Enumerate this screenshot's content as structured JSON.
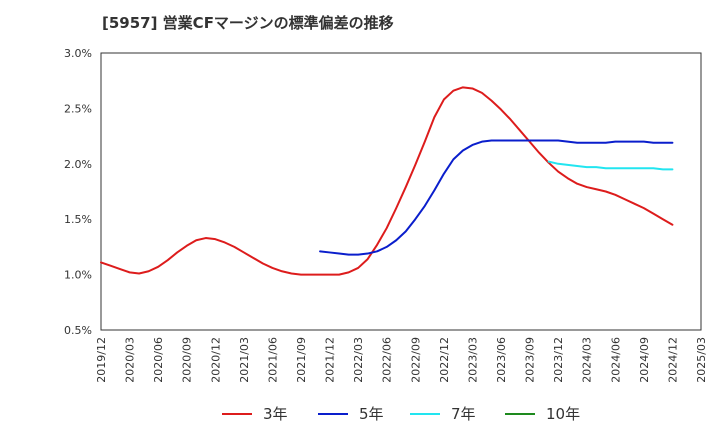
{
  "chart_data": {
    "type": "line",
    "title": "[5957]  営業CFマージンの標準偏差の推移",
    "xlabel": "",
    "ylabel": "",
    "ylim": [
      0.5,
      3.0
    ],
    "xlim": [
      "2019/12",
      "2025/03"
    ],
    "grid": true,
    "legend_position": "bottom",
    "y_ticks": [
      "0.5%",
      "1.0%",
      "1.5%",
      "2.0%",
      "2.5%",
      "3.0%"
    ],
    "x_ticks": [
      "2019/12",
      "2020/03",
      "2020/06",
      "2020/09",
      "2020/12",
      "2021/03",
      "2021/06",
      "2021/09",
      "2021/12",
      "2022/03",
      "2022/06",
      "2022/09",
      "2022/12",
      "2023/03",
      "2023/06",
      "2023/09",
      "2023/12",
      "2024/03",
      "2024/06",
      "2024/09",
      "2024/12",
      "2025/03"
    ],
    "series": [
      {
        "name": "3年",
        "color": "#dd1c1c",
        "x": [
          "2019/12",
          "2020/01",
          "2020/02",
          "2020/03",
          "2020/04",
          "2020/05",
          "2020/06",
          "2020/07",
          "2020/08",
          "2020/09",
          "2020/10",
          "2020/11",
          "2020/12",
          "2021/01",
          "2021/02",
          "2021/03",
          "2021/04",
          "2021/05",
          "2021/06",
          "2021/07",
          "2021/08",
          "2021/09",
          "2021/10",
          "2021/11",
          "2021/12",
          "2022/01",
          "2022/02",
          "2022/03",
          "2022/04",
          "2022/05",
          "2022/06",
          "2022/07",
          "2022/08",
          "2022/09",
          "2022/10",
          "2022/11",
          "2022/12",
          "2023/01",
          "2023/02",
          "2023/03",
          "2023/04",
          "2023/05",
          "2023/06",
          "2023/07",
          "2023/08",
          "2023/09",
          "2023/10",
          "2023/11",
          "2023/12",
          "2024/01",
          "2024/02",
          "2024/03",
          "2024/04",
          "2024/05",
          "2024/06",
          "2024/07",
          "2024/08",
          "2024/09",
          "2024/10",
          "2024/11",
          "2024/12"
        ],
        "values": [
          1.11,
          1.08,
          1.05,
          1.02,
          1.01,
          1.03,
          1.07,
          1.13,
          1.2,
          1.26,
          1.31,
          1.33,
          1.32,
          1.29,
          1.25,
          1.2,
          1.15,
          1.1,
          1.06,
          1.03,
          1.01,
          1.0,
          1.0,
          1.0,
          1.0,
          1.0,
          1.02,
          1.06,
          1.14,
          1.27,
          1.42,
          1.6,
          1.79,
          1.99,
          2.2,
          2.42,
          2.58,
          2.66,
          2.69,
          2.68,
          2.64,
          2.57,
          2.49,
          2.4,
          2.3,
          2.2,
          2.1,
          2.01,
          1.93,
          1.87,
          1.82,
          1.79,
          1.77,
          1.75,
          1.72,
          1.68,
          1.64,
          1.6,
          1.55,
          1.5,
          1.45
        ]
      },
      {
        "name": "5年",
        "color": "#0a1ecc",
        "x": [
          "2021/11",
          "2021/12",
          "2022/01",
          "2022/02",
          "2022/03",
          "2022/04",
          "2022/05",
          "2022/06",
          "2022/07",
          "2022/08",
          "2022/09",
          "2022/10",
          "2022/11",
          "2022/12",
          "2023/01",
          "2023/02",
          "2023/03",
          "2023/04",
          "2023/05",
          "2023/06",
          "2023/07",
          "2023/08",
          "2023/09",
          "2023/10",
          "2023/11",
          "2023/12",
          "2024/01",
          "2024/02",
          "2024/03",
          "2024/04",
          "2024/05",
          "2024/06",
          "2024/07",
          "2024/08",
          "2024/09",
          "2024/10",
          "2024/11",
          "2024/12"
        ],
        "values": [
          1.21,
          1.2,
          1.19,
          1.18,
          1.18,
          1.19,
          1.21,
          1.25,
          1.31,
          1.39,
          1.5,
          1.62,
          1.76,
          1.91,
          2.04,
          2.12,
          2.17,
          2.2,
          2.21,
          2.21,
          2.21,
          2.21,
          2.21,
          2.21,
          2.21,
          2.21,
          2.2,
          2.19,
          2.19,
          2.19,
          2.19,
          2.2,
          2.2,
          2.2,
          2.2,
          2.19,
          2.19,
          2.19
        ]
      },
      {
        "name": "7年",
        "color": "#22e5f0",
        "x": [
          "2023/11",
          "2023/12",
          "2024/01",
          "2024/02",
          "2024/03",
          "2024/04",
          "2024/05",
          "2024/06",
          "2024/07",
          "2024/08",
          "2024/09",
          "2024/10",
          "2024/11",
          "2024/12"
        ],
        "values": [
          2.02,
          2.0,
          1.99,
          1.98,
          1.97,
          1.97,
          1.96,
          1.96,
          1.96,
          1.96,
          1.96,
          1.96,
          1.95,
          1.95
        ]
      },
      {
        "name": "10年",
        "color": "#1e8a1e",
        "x": [],
        "values": []
      }
    ]
  }
}
